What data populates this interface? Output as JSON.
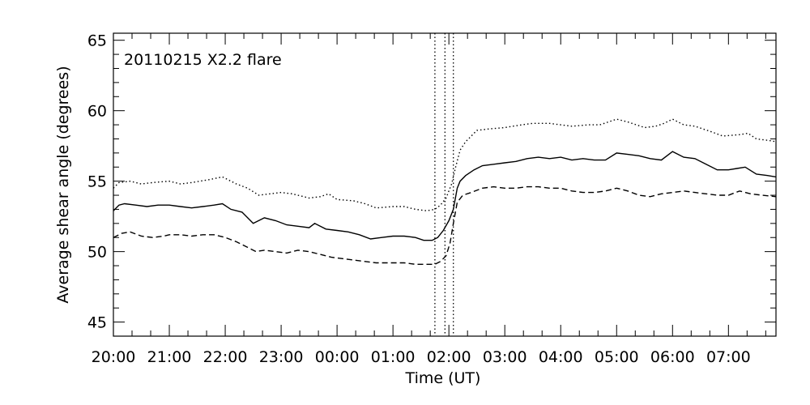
{
  "chart_data": {
    "type": "line",
    "title": "",
    "annotation": "20110215 X2.2 flare",
    "xlabel": "Time (UT)",
    "ylabel": "Average shear angle (degrees)",
    "xunit": "hours since 20:00 UT",
    "xlim": [
      0,
      11.85
    ],
    "ylim": [
      44,
      65.5
    ],
    "xticks": [
      {
        "v": 0,
        "label": "20:00"
      },
      {
        "v": 1,
        "label": "21:00"
      },
      {
        "v": 2,
        "label": "22:00"
      },
      {
        "v": 3,
        "label": "23:00"
      },
      {
        "v": 4,
        "label": "00:00"
      },
      {
        "v": 5,
        "label": "01:00"
      },
      {
        "v": 6,
        "label": "02:00"
      },
      {
        "v": 7,
        "label": "03:00"
      },
      {
        "v": 8,
        "label": "04:00"
      },
      {
        "v": 9,
        "label": "05:00"
      },
      {
        "v": 10,
        "label": "06:00"
      },
      {
        "v": 11,
        "label": "07:00"
      }
    ],
    "yticks": [
      {
        "v": 45,
        "label": "45"
      },
      {
        "v": 50,
        "label": "50"
      },
      {
        "v": 55,
        "label": "55"
      },
      {
        "v": 60,
        "label": "60"
      },
      {
        "v": 65,
        "label": "65"
      }
    ],
    "vlines": [
      5.75,
      5.93,
      6.08
    ],
    "series": [
      {
        "name": "",
        "style": "dotted",
        "points": [
          [
            0.0,
            54.5
          ],
          [
            0.1,
            54.9
          ],
          [
            0.3,
            55.0
          ],
          [
            0.5,
            54.8
          ],
          [
            0.7,
            54.9
          ],
          [
            1.0,
            55.0
          ],
          [
            1.2,
            54.8
          ],
          [
            1.4,
            54.9
          ],
          [
            1.7,
            55.1
          ],
          [
            1.95,
            55.3
          ],
          [
            2.2,
            54.8
          ],
          [
            2.4,
            54.5
          ],
          [
            2.6,
            54.0
          ],
          [
            2.8,
            54.1
          ],
          [
            3.0,
            54.2
          ],
          [
            3.2,
            54.1
          ],
          [
            3.5,
            53.8
          ],
          [
            3.7,
            53.9
          ],
          [
            3.85,
            54.1
          ],
          [
            4.0,
            53.7
          ],
          [
            4.3,
            53.6
          ],
          [
            4.5,
            53.4
          ],
          [
            4.7,
            53.1
          ],
          [
            5.0,
            53.2
          ],
          [
            5.2,
            53.2
          ],
          [
            5.4,
            53.0
          ],
          [
            5.6,
            52.9
          ],
          [
            5.75,
            53.0
          ],
          [
            5.85,
            53.3
          ],
          [
            5.95,
            53.8
          ],
          [
            6.05,
            54.8
          ],
          [
            6.12,
            56.0
          ],
          [
            6.2,
            57.2
          ],
          [
            6.3,
            57.8
          ],
          [
            6.4,
            58.2
          ],
          [
            6.5,
            58.6
          ],
          [
            6.7,
            58.7
          ],
          [
            7.0,
            58.8
          ],
          [
            7.3,
            59.0
          ],
          [
            7.5,
            59.1
          ],
          [
            7.8,
            59.1
          ],
          [
            8.0,
            59.0
          ],
          [
            8.2,
            58.9
          ],
          [
            8.5,
            59.0
          ],
          [
            8.7,
            59.0
          ],
          [
            9.0,
            59.4
          ],
          [
            9.2,
            59.2
          ],
          [
            9.5,
            58.8
          ],
          [
            9.7,
            58.9
          ],
          [
            9.85,
            59.1
          ],
          [
            10.0,
            59.4
          ],
          [
            10.2,
            59.0
          ],
          [
            10.4,
            58.9
          ],
          [
            10.7,
            58.5
          ],
          [
            10.9,
            58.2
          ],
          [
            11.2,
            58.3
          ],
          [
            11.35,
            58.4
          ],
          [
            11.5,
            58.0
          ],
          [
            11.7,
            57.9
          ],
          [
            11.85,
            57.8
          ]
        ]
      },
      {
        "name": "",
        "style": "solid",
        "points": [
          [
            0.0,
            52.9
          ],
          [
            0.1,
            53.3
          ],
          [
            0.2,
            53.4
          ],
          [
            0.4,
            53.3
          ],
          [
            0.6,
            53.2
          ],
          [
            0.8,
            53.3
          ],
          [
            1.0,
            53.3
          ],
          [
            1.2,
            53.2
          ],
          [
            1.4,
            53.1
          ],
          [
            1.6,
            53.2
          ],
          [
            1.8,
            53.3
          ],
          [
            1.95,
            53.4
          ],
          [
            2.1,
            53.0
          ],
          [
            2.3,
            52.8
          ],
          [
            2.5,
            52.0
          ],
          [
            2.7,
            52.4
          ],
          [
            2.9,
            52.2
          ],
          [
            3.1,
            51.9
          ],
          [
            3.3,
            51.8
          ],
          [
            3.5,
            51.7
          ],
          [
            3.6,
            52.0
          ],
          [
            3.8,
            51.6
          ],
          [
            4.0,
            51.5
          ],
          [
            4.2,
            51.4
          ],
          [
            4.4,
            51.2
          ],
          [
            4.6,
            50.9
          ],
          [
            4.8,
            51.0
          ],
          [
            5.0,
            51.1
          ],
          [
            5.2,
            51.1
          ],
          [
            5.4,
            51.0
          ],
          [
            5.55,
            50.8
          ],
          [
            5.7,
            50.8
          ],
          [
            5.8,
            51.0
          ],
          [
            5.9,
            51.5
          ],
          [
            6.0,
            52.2
          ],
          [
            6.08,
            53.0
          ],
          [
            6.15,
            54.5
          ],
          [
            6.2,
            55.0
          ],
          [
            6.3,
            55.4
          ],
          [
            6.45,
            55.8
          ],
          [
            6.6,
            56.1
          ],
          [
            6.8,
            56.2
          ],
          [
            7.0,
            56.3
          ],
          [
            7.2,
            56.4
          ],
          [
            7.4,
            56.6
          ],
          [
            7.6,
            56.7
          ],
          [
            7.8,
            56.6
          ],
          [
            8.0,
            56.7
          ],
          [
            8.2,
            56.5
          ],
          [
            8.4,
            56.6
          ],
          [
            8.6,
            56.5
          ],
          [
            8.8,
            56.5
          ],
          [
            9.0,
            57.0
          ],
          [
            9.2,
            56.9
          ],
          [
            9.4,
            56.8
          ],
          [
            9.6,
            56.6
          ],
          [
            9.8,
            56.5
          ],
          [
            10.0,
            57.1
          ],
          [
            10.2,
            56.7
          ],
          [
            10.4,
            56.6
          ],
          [
            10.6,
            56.2
          ],
          [
            10.8,
            55.8
          ],
          [
            11.0,
            55.8
          ],
          [
            11.15,
            55.9
          ],
          [
            11.3,
            56.0
          ],
          [
            11.5,
            55.5
          ],
          [
            11.7,
            55.4
          ],
          [
            11.85,
            55.3
          ]
        ]
      },
      {
        "name": "",
        "style": "dashed",
        "points": [
          [
            0.0,
            51.0
          ],
          [
            0.15,
            51.3
          ],
          [
            0.3,
            51.4
          ],
          [
            0.5,
            51.1
          ],
          [
            0.7,
            51.0
          ],
          [
            0.9,
            51.1
          ],
          [
            1.0,
            51.2
          ],
          [
            1.2,
            51.2
          ],
          [
            1.4,
            51.1
          ],
          [
            1.6,
            51.2
          ],
          [
            1.8,
            51.2
          ],
          [
            2.0,
            51.0
          ],
          [
            2.2,
            50.7
          ],
          [
            2.4,
            50.3
          ],
          [
            2.55,
            50.0
          ],
          [
            2.7,
            50.1
          ],
          [
            2.9,
            50.0
          ],
          [
            3.1,
            49.9
          ],
          [
            3.3,
            50.1
          ],
          [
            3.5,
            50.0
          ],
          [
            3.7,
            49.8
          ],
          [
            3.9,
            49.6
          ],
          [
            4.1,
            49.5
          ],
          [
            4.3,
            49.4
          ],
          [
            4.5,
            49.3
          ],
          [
            4.7,
            49.2
          ],
          [
            4.9,
            49.2
          ],
          [
            5.2,
            49.2
          ],
          [
            5.4,
            49.1
          ],
          [
            5.6,
            49.1
          ],
          [
            5.75,
            49.1
          ],
          [
            5.85,
            49.3
          ],
          [
            5.95,
            49.7
          ],
          [
            6.02,
            50.6
          ],
          [
            6.08,
            52.0
          ],
          [
            6.15,
            53.5
          ],
          [
            6.25,
            54.0
          ],
          [
            6.4,
            54.2
          ],
          [
            6.6,
            54.5
          ],
          [
            6.8,
            54.6
          ],
          [
            7.0,
            54.5
          ],
          [
            7.2,
            54.5
          ],
          [
            7.4,
            54.6
          ],
          [
            7.6,
            54.6
          ],
          [
            7.8,
            54.5
          ],
          [
            8.0,
            54.5
          ],
          [
            8.2,
            54.3
          ],
          [
            8.4,
            54.2
          ],
          [
            8.6,
            54.2
          ],
          [
            8.8,
            54.3
          ],
          [
            9.0,
            54.5
          ],
          [
            9.2,
            54.3
          ],
          [
            9.4,
            54.0
          ],
          [
            9.6,
            53.9
          ],
          [
            9.8,
            54.1
          ],
          [
            10.0,
            54.2
          ],
          [
            10.2,
            54.3
          ],
          [
            10.4,
            54.2
          ],
          [
            10.6,
            54.1
          ],
          [
            10.8,
            54.0
          ],
          [
            11.0,
            54.0
          ],
          [
            11.2,
            54.3
          ],
          [
            11.4,
            54.1
          ],
          [
            11.6,
            54.0
          ],
          [
            11.85,
            53.9
          ]
        ]
      }
    ]
  }
}
